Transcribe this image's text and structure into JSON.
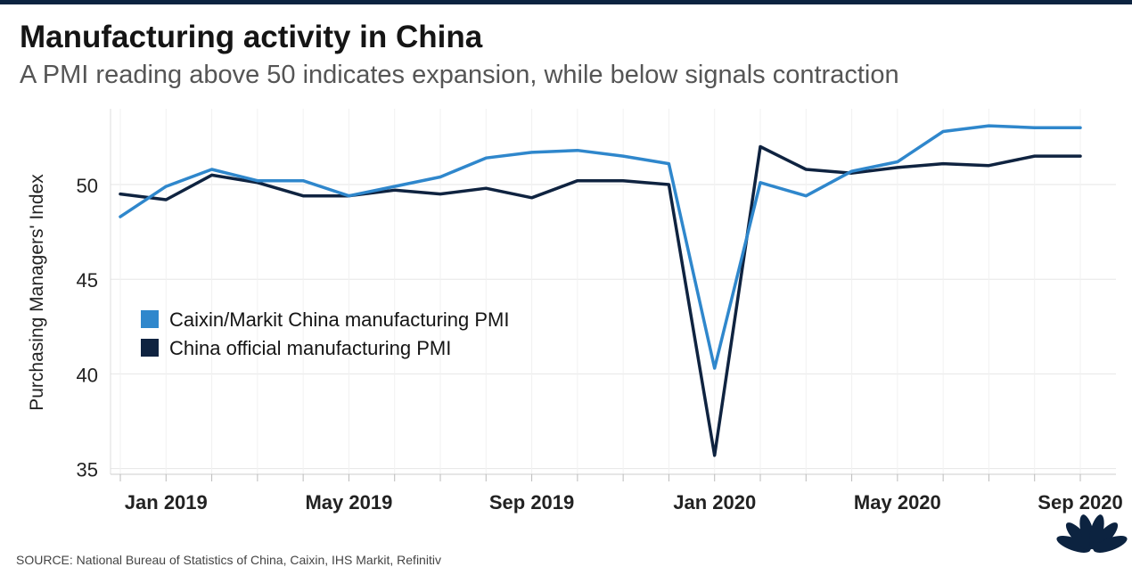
{
  "title": "Manufacturing activity in China",
  "subtitle": "A PMI reading above 50 indicates expansion, while below signals contraction",
  "source": "SOURCE: National Bureau of Statistics of China, Caixin, IHS Markit, Refinitiv",
  "colors": {
    "caixin": "#2f87cc",
    "official": "#0f2340",
    "grid": "#e6e6e6",
    "axis_text": "#222222"
  },
  "icons": {
    "logo": "peacock-logo-icon"
  },
  "chart_data": {
    "type": "line",
    "title": "Manufacturing activity in China",
    "subtitle": "A PMI reading above 50 indicates expansion, while below signals contraction",
    "xlabel": "",
    "ylabel": "Purchasing Managers' Index",
    "ylim": [
      34.7,
      54
    ],
    "yticks": [
      35,
      40,
      45,
      50
    ],
    "grid": true,
    "legend_position": "middle-left",
    "x": [
      "Dec 2018",
      "Jan 2019",
      "Feb 2019",
      "Mar 2019",
      "Apr 2019",
      "May 2019",
      "Jun 2019",
      "Jul 2019",
      "Aug 2019",
      "Sep 2019",
      "Oct 2019",
      "Nov 2019",
      "Dec 2019",
      "Jan 2020",
      "Feb 2020",
      "Mar 2020",
      "Apr 2020",
      "May 2020",
      "Jun 2020",
      "Jul 2020",
      "Aug 2020",
      "Sep 2020"
    ],
    "xtick_labels": [
      {
        "index": 1,
        "label": "Jan 2019"
      },
      {
        "index": 5,
        "label": "May 2019"
      },
      {
        "index": 9,
        "label": "Sep 2019"
      },
      {
        "index": 13,
        "label": "Jan 2020"
      },
      {
        "index": 17,
        "label": "May 2020"
      },
      {
        "index": 21,
        "label": "Sep 2020"
      }
    ],
    "series": [
      {
        "name": "Caixin/Markit China manufacturing PMI",
        "color": "#2f87cc",
        "values": [
          48.3,
          49.9,
          50.8,
          50.2,
          50.2,
          49.4,
          49.9,
          50.4,
          51.4,
          51.7,
          51.8,
          51.5,
          51.1,
          40.3,
          50.1,
          49.4,
          50.7,
          51.2,
          52.8,
          53.1,
          53.0,
          53.0
        ]
      },
      {
        "name": "China official manufacturing PMI",
        "color": "#0f2340",
        "values": [
          49.5,
          49.2,
          50.5,
          50.1,
          49.4,
          49.4,
          49.7,
          49.5,
          49.8,
          49.3,
          50.2,
          50.2,
          50.0,
          35.7,
          52.0,
          50.8,
          50.6,
          50.9,
          51.1,
          51.0,
          51.5,
          51.5
        ]
      }
    ]
  }
}
